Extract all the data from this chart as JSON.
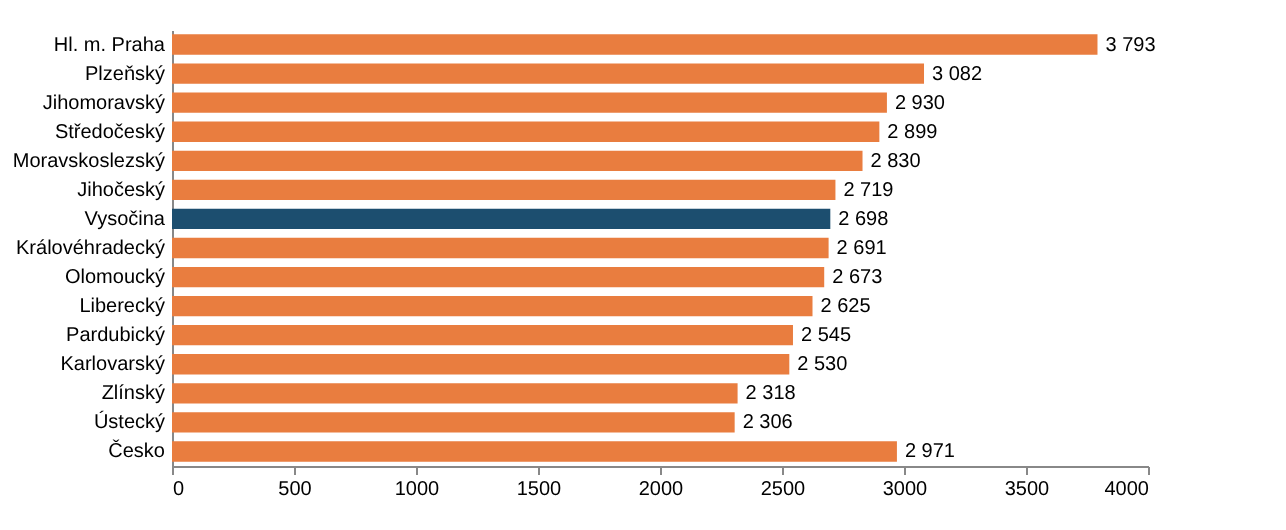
{
  "chart_data": {
    "type": "bar",
    "orientation": "horizontal",
    "categories": [
      "Hl. m. Praha",
      "Plzeňský",
      "Jihomoravský",
      "Středočeský",
      "Moravskoslezský",
      "Jihočeský",
      "Vysočina",
      "Královéhradecký",
      "Olomoucký",
      "Liberecký",
      "Pardubický",
      "Karlovarský",
      "Zlínský",
      "Ústecký",
      "Česko"
    ],
    "values": [
      3793,
      3082,
      2930,
      2899,
      2830,
      2719,
      2698,
      2691,
      2673,
      2625,
      2545,
      2530,
      2318,
      2306,
      2971
    ],
    "colors": [
      "#e97d3f",
      "#e97d3f",
      "#e97d3f",
      "#e97d3f",
      "#e97d3f",
      "#e97d3f",
      "#1c4e6f",
      "#e97d3f",
      "#e97d3f",
      "#e97d3f",
      "#e97d3f",
      "#e97d3f",
      "#e97d3f",
      "#e97d3f",
      "#e97d3f"
    ],
    "value_labels": [
      "3 793",
      "3 082",
      "2 930",
      "2 899",
      "2 830",
      "2 719",
      "2 698",
      "2 691",
      "2 673",
      "2 625",
      "2 545",
      "2 530",
      "2 318",
      "2 306",
      "2 971"
    ],
    "xlim": [
      0,
      4000
    ],
    "xticks": [
      0,
      500,
      1000,
      1500,
      2000,
      2500,
      3000,
      3500,
      4000
    ],
    "grid": false
  }
}
